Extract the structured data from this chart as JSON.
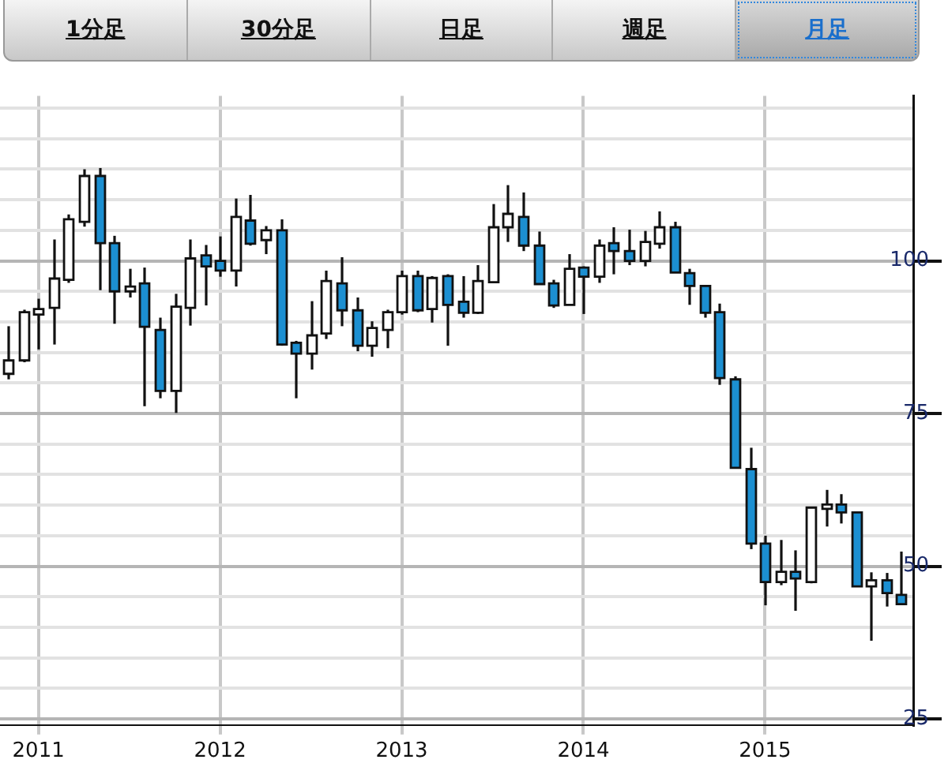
{
  "chart_data": {
    "type": "candlestick",
    "annotations": [
      "1分足",
      "30分足",
      "日足",
      "週足",
      "月足"
    ],
    "x": [
      "2010-11",
      "2010-12",
      "2011-01",
      "2011-02",
      "2011-03",
      "2011-04",
      "2011-05",
      "2011-06",
      "2011-07",
      "2011-08",
      "2011-09",
      "2011-10",
      "2011-11",
      "2011-12",
      "2012-01",
      "2012-02",
      "2012-03",
      "2012-04",
      "2012-05",
      "2012-06",
      "2012-07",
      "2012-08",
      "2012-09",
      "2012-10",
      "2012-11",
      "2012-12",
      "2013-01",
      "2013-02",
      "2013-03",
      "2013-04",
      "2013-05",
      "2013-06",
      "2013-07",
      "2013-08",
      "2013-09",
      "2013-10",
      "2013-11",
      "2013-12",
      "2014-01",
      "2014-02",
      "2014-03",
      "2014-04",
      "2014-05",
      "2014-06",
      "2014-07",
      "2014-08",
      "2014-09",
      "2014-10",
      "2014-11",
      "2014-12",
      "2015-01",
      "2015-02",
      "2015-03",
      "2015-04",
      "2015-05",
      "2015-06",
      "2015-07",
      "2015-08",
      "2015-09",
      "2015-10"
    ],
    "ohlc": [
      [
        81.5,
        89.3,
        80.6,
        83.7
      ],
      [
        83.7,
        92,
        83.4,
        91.6
      ],
      [
        91.2,
        93.8,
        85.5,
        92.1
      ],
      [
        92.3,
        103.5,
        86.3,
        97.1
      ],
      [
        96.9,
        107.6,
        96.4,
        106.8
      ],
      [
        106.4,
        115,
        105.6,
        113.9
      ],
      [
        113.9,
        115.2,
        95.2,
        102.9
      ],
      [
        102.9,
        104.1,
        89.7,
        95
      ],
      [
        95,
        98.7,
        94,
        95.8
      ],
      [
        96.3,
        98.9,
        76.2,
        89.2
      ],
      [
        88.7,
        90.7,
        77.5,
        78.7
      ],
      [
        78.7,
        94.6,
        75.1,
        92.5
      ],
      [
        92.3,
        103.5,
        89.4,
        100.4
      ],
      [
        100.9,
        102.6,
        92.7,
        99.1
      ],
      [
        100,
        104,
        97.4,
        98.4
      ],
      [
        98.4,
        110.2,
        95.8,
        107.2
      ],
      [
        106.6,
        110.8,
        102.5,
        102.8
      ],
      [
        103.4,
        105.7,
        101.1,
        105
      ],
      [
        105,
        106.8,
        86.1,
        86.3
      ],
      [
        86.6,
        86.9,
        77.5,
        84.8
      ],
      [
        84.8,
        93.4,
        82.2,
        87.8
      ],
      [
        88.1,
        98.4,
        87.2,
        96.7
      ],
      [
        96.3,
        100.6,
        89.3,
        91.9
      ],
      [
        91.9,
        94,
        85.2,
        86.1
      ],
      [
        86.1,
        90.1,
        84.3,
        89
      ],
      [
        88.7,
        92,
        85.7,
        91.6
      ],
      [
        91.6,
        98.4,
        91.2,
        97.5
      ],
      [
        97.5,
        98.4,
        91.6,
        91.9
      ],
      [
        92.1,
        97.5,
        89.9,
        97.2
      ],
      [
        97.5,
        97.8,
        86.1,
        92.8
      ],
      [
        93.3,
        97.5,
        90.7,
        91.5
      ],
      [
        91.5,
        99.3,
        91.3,
        96.7
      ],
      [
        96.5,
        109.3,
        96.5,
        105.5
      ],
      [
        105.5,
        112.4,
        103.1,
        107.7
      ],
      [
        107.2,
        111.2,
        101.6,
        102.5
      ],
      [
        102.5,
        104.8,
        96.2,
        96.2
      ],
      [
        96.3,
        96.9,
        92.3,
        92.7
      ],
      [
        92.8,
        101.1,
        92.8,
        98.7
      ],
      [
        98.9,
        99.1,
        91.3,
        97.4
      ],
      [
        97.4,
        103.5,
        96.4,
        102.5
      ],
      [
        102.9,
        105.5,
        97.8,
        101.6
      ],
      [
        101.6,
        105.1,
        99.3,
        100
      ],
      [
        100,
        104.9,
        99.1,
        103.1
      ],
      [
        102.8,
        108.1,
        102,
        105.5
      ],
      [
        105.5,
        106.4,
        98.1,
        98.1
      ],
      [
        98,
        98.7,
        92.8,
        95.9
      ],
      [
        95.9,
        96,
        90.7,
        91.5
      ],
      [
        91.6,
        93,
        79.7,
        80.8
      ],
      [
        80.6,
        81.1,
        66.1,
        66.1
      ],
      [
        65.9,
        69.4,
        52.8,
        53.7
      ],
      [
        53.7,
        55,
        43.6,
        47.4
      ],
      [
        47.4,
        54.3,
        46.9,
        49.1
      ],
      [
        49.1,
        52.6,
        42.7,
        48
      ],
      [
        47.4,
        59.7,
        47.2,
        59.6
      ],
      [
        59.4,
        62.5,
        56.5,
        60.1
      ],
      [
        60.1,
        61.8,
        57,
        58.8
      ],
      [
        58.8,
        58.9,
        46.7,
        46.7
      ],
      [
        46.7,
        49,
        37.8,
        47.7
      ],
      [
        47.7,
        48.9,
        43.4,
        45.6
      ],
      [
        45.3,
        52.4,
        43.8,
        43.8
      ]
    ],
    "colors": [
      "#ffffff",
      "#ffffff",
      "#ffffff",
      "#ffffff",
      "#ffffff",
      "#ffffff",
      "#1c8fd1",
      "#1c8fd1",
      "#ffffff",
      "#1c8fd1",
      "#1c8fd1",
      "#ffffff",
      "#ffffff",
      "#1c8fd1",
      "#1c8fd1",
      "#ffffff",
      "#1c8fd1",
      "#ffffff",
      "#1c8fd1",
      "#1c8fd1",
      "#ffffff",
      "#ffffff",
      "#1c8fd1",
      "#1c8fd1",
      "#ffffff",
      "#ffffff",
      "#ffffff",
      "#1c8fd1",
      "#ffffff",
      "#1c8fd1",
      "#1c8fd1",
      "#ffffff",
      "#ffffff",
      "#ffffff",
      "#1c8fd1",
      "#1c8fd1",
      "#1c8fd1",
      "#ffffff",
      "#1c8fd1",
      "#ffffff",
      "#1c8fd1",
      "#1c8fd1",
      "#ffffff",
      "#ffffff",
      "#1c8fd1",
      "#1c8fd1",
      "#1c8fd1",
      "#1c8fd1",
      "#1c8fd1",
      "#1c8fd1",
      "#1c8fd1",
      "#ffffff",
      "#1c8fd1",
      "#ffffff",
      "#ffffff",
      "#1c8fd1",
      "#1c8fd1",
      "#ffffff",
      "#1c8fd1",
      "#1c8fd1"
    ],
    "xlim": [
      "2010-10-15",
      "2015-10-25"
    ],
    "xticks": [
      "2011",
      "2012",
      "2013",
      "2014",
      "2015"
    ],
    "ylim": [
      24,
      127
    ],
    "yticks": [
      25,
      {
        "value": 30,
        "label": null
      },
      {
        "value": 35,
        "label": null
      },
      {
        "value": 40,
        "label": null
      },
      {
        "value": 45,
        "label": null
      },
      50,
      {
        "value": 55,
        "label": null
      },
      {
        "value": 60,
        "label": null
      },
      {
        "value": 65,
        "label": null
      },
      {
        "value": 70,
        "label": null
      },
      75,
      {
        "value": 80,
        "label": null
      },
      {
        "value": 85,
        "label": null
      },
      {
        "value": 90,
        "label": null
      },
      {
        "value": 95,
        "label": null
      },
      100,
      {
        "value": 105,
        "label": null
      },
      {
        "value": 110,
        "label": null
      },
      {
        "value": 115,
        "label": null
      },
      {
        "value": 120,
        "label": null
      },
      {
        "value": 125,
        "label": null
      }
    ],
    "grid": true,
    "legend": false
  }
}
